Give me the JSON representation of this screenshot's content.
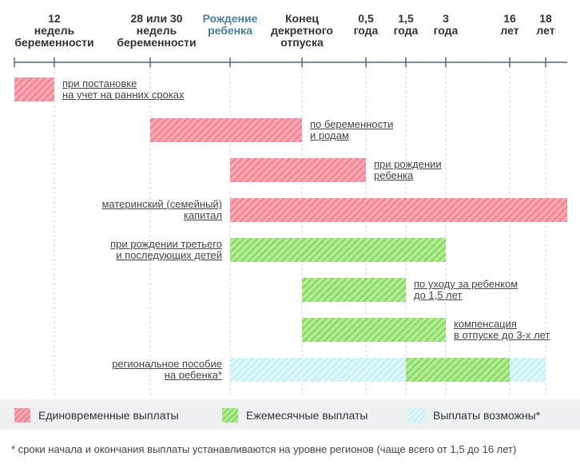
{
  "headers": [
    {
      "id": "h12w",
      "text": "12\nнедель\nбеременности",
      "highlight": false
    },
    {
      "id": "h28w",
      "text": "28 или 30\nнедель\nбеременности",
      "highlight": false
    },
    {
      "id": "hbirth",
      "text": "Рождение\nребенка",
      "highlight": true
    },
    {
      "id": "hleave",
      "text": "Конец\nдекретного\nотпуска",
      "highlight": false
    },
    {
      "id": "h05",
      "text": "0,5\nгода",
      "highlight": false
    },
    {
      "id": "h15",
      "text": "1,5\nгода",
      "highlight": false
    },
    {
      "id": "h3",
      "text": "3\nгода",
      "highlight": false
    },
    {
      "id": "h16",
      "text": "16\nлет",
      "highlight": false
    },
    {
      "id": "h18",
      "text": "18\nлет",
      "highlight": false
    }
  ],
  "bars": [
    {
      "id": "early-registration",
      "label": "при постановке\nна учет на ранних сроках",
      "type": "one-time",
      "start": "h12w",
      "end": "h12w_end",
      "label_side": "right"
    },
    {
      "id": "pregnancy-birth",
      "label": "по беременности\nи родам",
      "type": "one-time",
      "start": "h28w",
      "end": "hleave",
      "label_side": "right"
    },
    {
      "id": "at-birth",
      "label": "при рождении\nребенка",
      "type": "one-time",
      "start": "hbirth",
      "end": "h05",
      "label_side": "right"
    },
    {
      "id": "maternity-capital",
      "label": "материнский (семейный)\nкапитал",
      "type": "one-time",
      "start": "hbirth",
      "end": "edge",
      "label_side": "left"
    },
    {
      "id": "third-child",
      "label": "при рождении третьего\nи последующих детей",
      "type": "monthly",
      "start": "hbirth",
      "end": "h3",
      "label_side": "left"
    },
    {
      "id": "childcare-15",
      "label": "по уходу за ребенком\nдо 1,5 лет",
      "type": "monthly",
      "start": "hleave",
      "end": "h15",
      "label_side": "right"
    },
    {
      "id": "compensation-3",
      "label": "компенсация\nв отпуске до 3-х лет",
      "type": "monthly",
      "start": "hleave",
      "end": "h3",
      "label_side": "right"
    },
    {
      "id": "regional-allowance",
      "label": "региональное пособие\nна ребенка*",
      "type": "possible",
      "start": "hbirth",
      "end": "h18",
      "label_side": "left",
      "inner": {
        "type": "monthly",
        "start": "h15",
        "end": "h16"
      }
    }
  ],
  "legend": [
    {
      "id": "legend-one-time",
      "label": "Единовременные выплаты",
      "swatch": "red"
    },
    {
      "id": "legend-monthly",
      "label": "Ежемесячные выплаты",
      "swatch": "green"
    },
    {
      "id": "legend-possible",
      "label": "Выплаты возможны*",
      "swatch": "cyan"
    }
  ],
  "footnote": "* сроки начала и окончания выплаты устанавливаются на уровне регионов (чаще всего от 1,5 до 16 лет)",
  "colors": {
    "one_time_fill": "#f9a8b3",
    "one_time_stripe": "#f47d8d",
    "monthly_fill": "#b5ea98",
    "monthly_stripe": "#7ed957",
    "possible_fill": "#dff7fb",
    "possible_stripe": "#bfeef6",
    "axis": "#4a6a82",
    "highlight_text": "#4a7fa5"
  }
}
